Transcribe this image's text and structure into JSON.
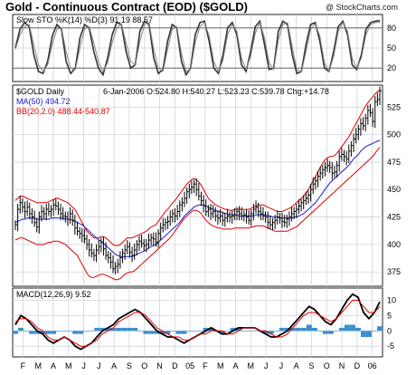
{
  "title": "Gold - Continuous Contract (EOD) ($GOLD)",
  "copyright": "@ StockCharts.com",
  "colors": {
    "price_bars": "#000000",
    "ma50": "#1a1acc",
    "bollinger": "#dd0000",
    "macd_line": "#000000",
    "macd_signal": "#dd0000",
    "macd_hist": "#3a8fd0",
    "gridline": "#cfd3da"
  },
  "chart_data": [
    {
      "type": "line",
      "title": "Slow STO %K(14) %D(3) 91.19 88.57",
      "ylim": [
        0,
        100
      ],
      "yticks": [
        20,
        50,
        80
      ],
      "reference_lines": [
        20,
        80
      ],
      "grid": true,
      "series": [
        {
          "values": [
            50,
            78,
            88,
            82,
            40,
            15,
            12,
            30,
            68,
            85,
            78,
            30,
            12,
            20,
            65,
            85,
            80,
            45,
            20,
            10,
            35,
            70,
            88,
            85,
            45,
            20,
            25,
            75,
            90,
            85,
            35,
            12,
            18,
            60,
            85,
            80,
            30,
            10,
            20,
            70,
            88,
            90,
            60,
            20,
            12,
            40,
            80,
            88,
            70,
            25,
            15,
            45,
            82,
            90,
            55,
            18,
            20,
            75,
            90,
            85,
            40,
            12,
            15,
            55,
            85,
            88,
            60,
            20,
            15,
            45,
            82,
            90,
            70,
            25,
            18,
            40,
            78,
            88,
            90,
            91
          ]
        },
        {
          "values": [
            48,
            70,
            82,
            85,
            55,
            25,
            15,
            25,
            55,
            78,
            80,
            45,
            20,
            18,
            50,
            78,
            82,
            58,
            30,
            15,
            28,
            58,
            80,
            86,
            58,
            30,
            25,
            60,
            85,
            88,
            48,
            20,
            15,
            48,
            78,
            82,
            42,
            15,
            18,
            58,
            82,
            88,
            68,
            30,
            15,
            32,
            70,
            85,
            75,
            35,
            18,
            38,
            72,
            88,
            65,
            28,
            18,
            62,
            85,
            88,
            52,
            18,
            14,
            45,
            78,
            86,
            68,
            28,
            15,
            38,
            75,
            88,
            75,
            35,
            20,
            35,
            70,
            85,
            88,
            88.57
          ]
        }
      ]
    },
    {
      "type": "line",
      "title": "$GOLD Daily",
      "info": "6-Jan-2006 O:524.80 H:540.27 L:523.23 C:539.78 Chg:+14.78",
      "legend": [
        "MA(50) 494.72",
        "BB(20,2.0) 488.44-540.87"
      ],
      "ylim": [
        362,
        545
      ],
      "yticks": [
        375,
        400,
        425,
        450,
        475,
        500,
        525
      ],
      "grid": true,
      "series": [
        {
          "values": [
            418,
            432,
            438,
            434,
            430,
            434,
            428,
            425,
            420,
            416,
            425,
            430,
            428,
            432,
            430,
            432,
            436,
            435,
            432,
            428,
            426,
            425,
            423,
            428,
            422,
            415,
            412,
            410,
            408,
            405,
            400,
            395,
            392,
            390,
            395,
            398,
            402,
            396,
            390,
            388,
            384,
            378,
            380,
            382,
            388,
            392,
            395,
            398,
            393,
            390,
            395,
            400,
            403,
            401,
            399,
            400,
            404,
            406,
            405,
            402,
            410,
            415,
            418,
            420,
            421,
            425,
            428,
            426,
            430,
            436,
            438,
            442,
            448,
            450,
            452,
            455,
            450,
            444,
            440,
            435,
            430,
            432,
            428,
            430,
            426,
            424,
            426,
            422,
            424,
            426,
            425,
            426,
            427,
            430,
            428,
            426,
            427,
            425,
            422,
            428,
            432,
            434,
            430,
            428,
            426,
            425,
            420,
            418,
            420,
            422,
            425,
            424,
            421,
            420,
            423,
            425,
            428,
            430,
            432,
            435,
            438,
            440,
            442,
            445,
            450,
            455,
            458,
            462,
            465,
            468,
            470,
            472,
            470,
            465,
            466,
            472,
            480,
            482,
            480,
            478,
            485,
            490,
            496,
            500,
            505,
            510,
            508,
            515,
            522,
            520,
            512,
            530,
            532,
            539.78
          ]
        },
        {
          "values": [
            420,
            421,
            422,
            423,
            423,
            424,
            424,
            424,
            424,
            423,
            423,
            423,
            423,
            423,
            423,
            424,
            424,
            424,
            424,
            424,
            424,
            423,
            423,
            423,
            422,
            421,
            420,
            419,
            418,
            416,
            414,
            412,
            410,
            408,
            406,
            404,
            403,
            401,
            399,
            397,
            395,
            393,
            391,
            390,
            389,
            389,
            389,
            389,
            389,
            389,
            390,
            391,
            392,
            393,
            394,
            395,
            397,
            398,
            399,
            400,
            402,
            404,
            406,
            408,
            410,
            412,
            414,
            416,
            418,
            420,
            423,
            426,
            428,
            430,
            432,
            434,
            435,
            436,
            436,
            436,
            435,
            434,
            433,
            432,
            431,
            430,
            430,
            429,
            428,
            428,
            427,
            427,
            427,
            427,
            426,
            426,
            426,
            426,
            426,
            426,
            426,
            427,
            427,
            427,
            427,
            427,
            426,
            426,
            425,
            425,
            425,
            424,
            424,
            424,
            424,
            424,
            424,
            425,
            425,
            426,
            427,
            428,
            430,
            432,
            434,
            436,
            438,
            441,
            444,
            447,
            450,
            453,
            456,
            458,
            460,
            462,
            464,
            466,
            468,
            470,
            472,
            475,
            478,
            480,
            482,
            485,
            487,
            489,
            490,
            491,
            492,
            493,
            494,
            494.72
          ]
        },
        {
          "values": [
            440,
            442,
            444,
            444,
            443,
            442,
            441,
            440,
            439,
            438,
            438,
            438,
            438,
            438,
            439,
            440,
            441,
            442,
            442,
            441,
            440,
            439,
            438,
            436,
            434,
            432,
            428,
            424,
            420,
            416,
            412,
            410,
            408,
            406,
            406,
            406,
            407,
            407,
            406,
            404,
            402,
            400,
            399,
            399,
            400,
            402,
            404,
            406,
            406,
            406,
            407,
            408,
            409,
            410,
            411,
            412,
            414,
            416,
            417,
            418,
            421,
            424,
            427,
            430,
            432,
            435,
            438,
            440,
            443,
            446,
            449,
            452,
            455,
            457,
            459,
            460,
            459,
            457,
            454,
            450,
            446,
            442,
            440,
            438,
            436,
            435,
            434,
            433,
            432,
            432,
            431,
            431,
            432,
            432,
            432,
            432,
            432,
            432,
            432,
            433,
            434,
            435,
            436,
            436,
            436,
            435,
            434,
            433,
            432,
            431,
            430,
            430,
            430,
            431,
            432,
            433,
            434,
            436,
            438,
            440,
            442,
            444,
            447,
            450,
            454,
            458,
            462,
            466,
            470,
            474,
            477,
            479,
            480,
            480,
            481,
            483,
            486,
            489,
            492,
            495,
            498,
            502,
            506,
            510,
            514,
            518,
            522,
            526,
            529,
            532,
            534,
            537,
            539,
            540.87
          ]
        },
        {
          "values": [
            404,
            405,
            406,
            406,
            405,
            404,
            403,
            402,
            401,
            400,
            400,
            400,
            400,
            401,
            402,
            402,
            403,
            403,
            403,
            402,
            401,
            400,
            398,
            396,
            394,
            392,
            390,
            386,
            382,
            378,
            374,
            371,
            370,
            370,
            371,
            372,
            373,
            373,
            372,
            371,
            370,
            369,
            368,
            368,
            369,
            371,
            373,
            374,
            375,
            375,
            376,
            378,
            380,
            382,
            384,
            386,
            388,
            390,
            392,
            394,
            396,
            398,
            400,
            402,
            404,
            406,
            409,
            412,
            415,
            418,
            421,
            424,
            426,
            428,
            430,
            431,
            431,
            430,
            428,
            425,
            422,
            420,
            418,
            417,
            416,
            415,
            415,
            414,
            414,
            414,
            414,
            414,
            415,
            415,
            415,
            415,
            415,
            415,
            415,
            416,
            416,
            417,
            417,
            417,
            417,
            416,
            415,
            414,
            413,
            412,
            412,
            412,
            412,
            412,
            412,
            413,
            414,
            415,
            416,
            418,
            420,
            422,
            424,
            426,
            428,
            430,
            432,
            434,
            436,
            438,
            440,
            442,
            444,
            446,
            448,
            450,
            452,
            454,
            456,
            458,
            460,
            462,
            464,
            466,
            468,
            470,
            472,
            474,
            476,
            478,
            480,
            483,
            486,
            488.44
          ]
        }
      ]
    },
    {
      "type": "line",
      "title": "MACD(12,26,9) 9.52",
      "ylim": [
        -8.5,
        14
      ],
      "yticks": [
        -5,
        0,
        5,
        10
      ],
      "grid": true,
      "x_tick_labels": [
        "F",
        "M",
        "A",
        "M",
        "J",
        "J",
        "A",
        "S",
        "O",
        "N",
        "D",
        "05",
        "F",
        "M",
        "A",
        "M",
        "J",
        "J",
        "A",
        "S",
        "O",
        "N",
        "D",
        "06"
      ],
      "series": [
        {
          "values": [
            2,
            5,
            4,
            2,
            0,
            -1,
            -3,
            -4,
            -3,
            -2,
            -3,
            -5,
            -6,
            -5,
            -4,
            -2,
            0,
            1,
            2,
            4,
            5,
            6,
            7,
            6,
            4,
            2,
            0,
            -1,
            -2,
            -2,
            -3,
            -4,
            -3,
            -2,
            -1,
            0,
            1,
            0,
            -1,
            -1,
            0,
            1,
            1,
            1,
            1,
            0,
            -1,
            -2,
            -2,
            -1,
            0,
            2,
            4,
            6,
            8,
            7,
            5,
            3,
            2,
            4,
            7,
            10,
            12,
            11,
            6,
            4,
            6,
            9.52
          ]
        },
        {
          "values": [
            3,
            4,
            4,
            3,
            1,
            0,
            -2,
            -3,
            -3,
            -2,
            -3,
            -4,
            -5,
            -5,
            -4,
            -3,
            -1,
            0,
            1,
            3,
            4,
            5,
            6,
            6,
            5,
            3,
            1,
            0,
            -1,
            -2,
            -2,
            -3,
            -3,
            -2,
            -1,
            -1,
            0,
            0,
            0,
            -1,
            -1,
            0,
            1,
            1,
            1,
            0,
            0,
            -1,
            -2,
            -2,
            -1,
            1,
            3,
            5,
            6,
            6,
            5,
            4,
            3,
            4,
            6,
            8,
            10,
            10,
            8,
            6,
            6,
            8
          ]
        },
        {
          "values": [
            -1,
            1,
            0,
            -1,
            -1,
            -1,
            -1,
            -1,
            0,
            0,
            0,
            -1,
            -1,
            0,
            0,
            1,
            1,
            1,
            1,
            1,
            1,
            1,
            1,
            0,
            -1,
            -1,
            -1,
            -1,
            -1,
            0,
            -1,
            -1,
            0,
            0,
            0,
            1,
            1,
            0,
            -1,
            0,
            1,
            1,
            0,
            0,
            0,
            0,
            -1,
            -1,
            0,
            1,
            1,
            1,
            1,
            1,
            2,
            1,
            0,
            -1,
            -1,
            0,
            1,
            2,
            2,
            1,
            -2,
            -2,
            0,
            1.5
          ]
        }
      ]
    }
  ]
}
